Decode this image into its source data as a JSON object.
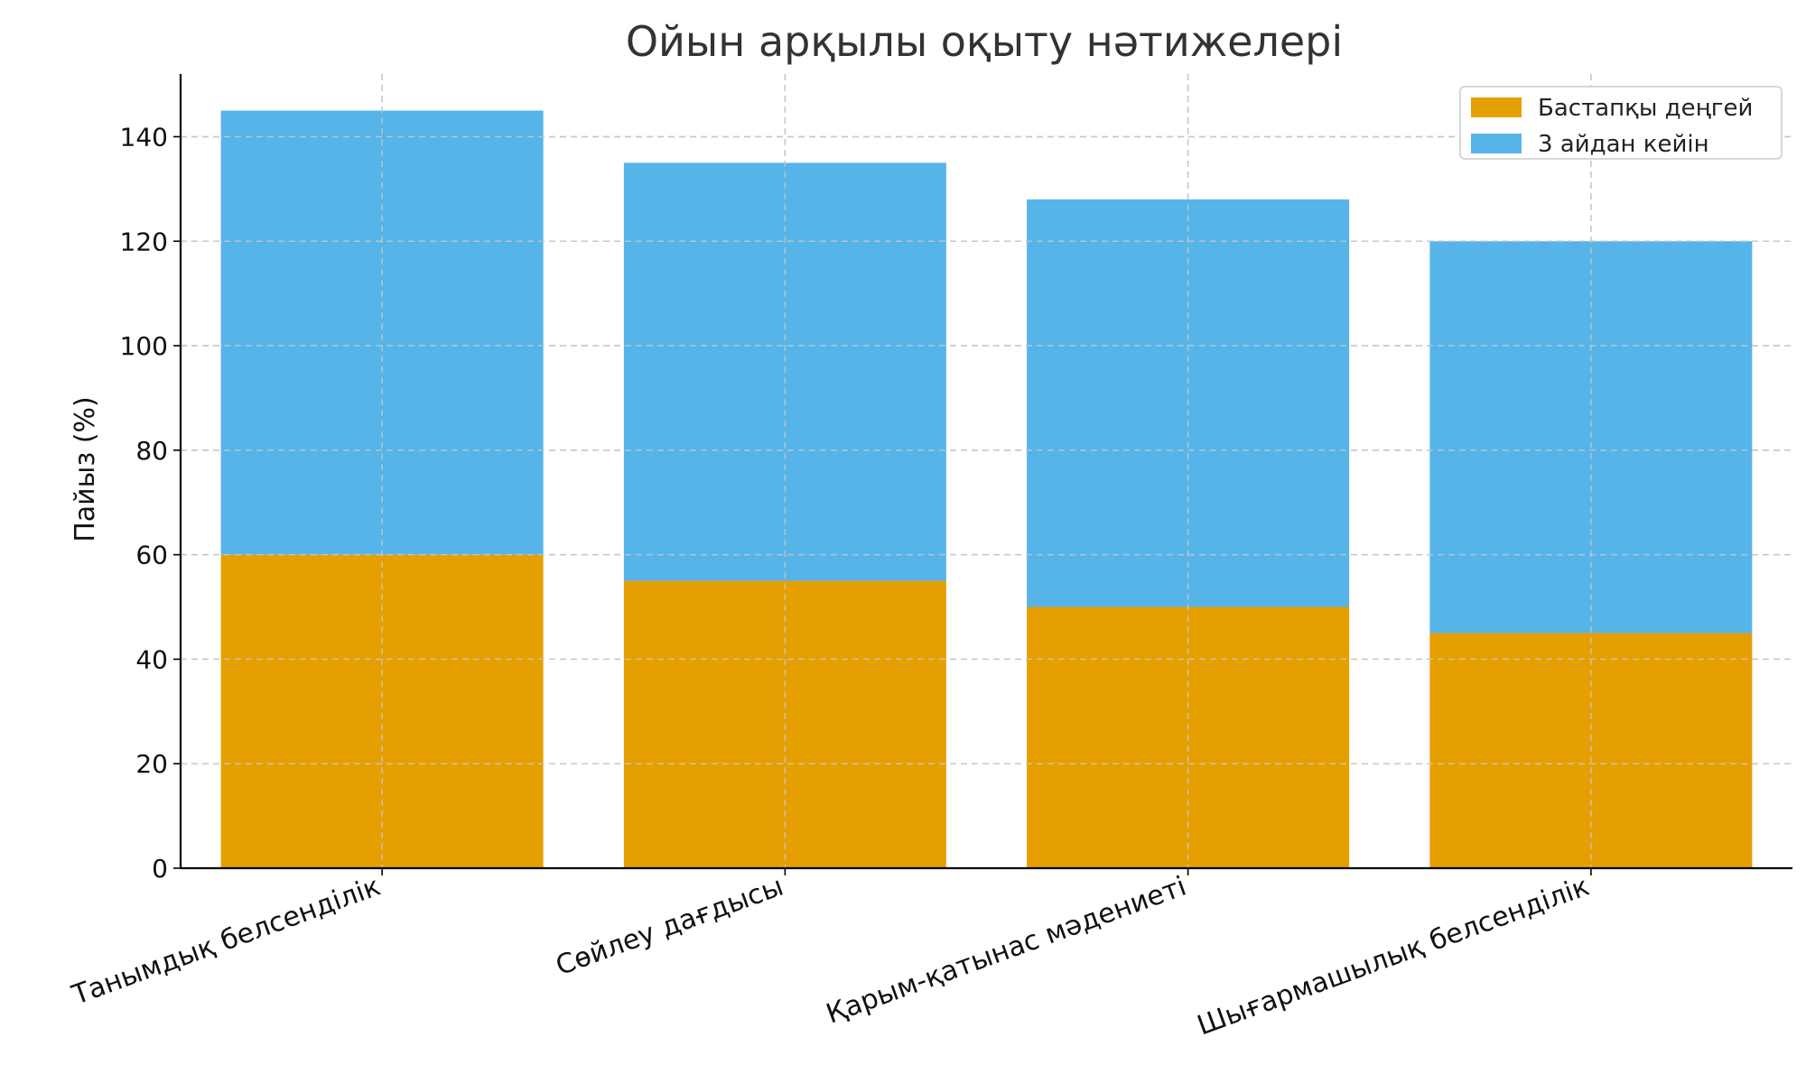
{
  "chart_data": {
    "type": "bar",
    "stacked": true,
    "title": "Ойын арқылы оқыту нәтижелері",
    "xlabel": "",
    "ylabel": "Пайыз (%)",
    "categories": [
      "Танымдық белсенділік",
      "Сөйлеу дағдысы",
      "Қарым-қатынас мәдениеті",
      "Шығармашылық белсенділік"
    ],
    "series": [
      {
        "name": "Бастапқы деңгей",
        "values": [
          60,
          55,
          50,
          45
        ],
        "color": "#E69F00"
      },
      {
        "name": "3 айдан кейін",
        "values": [
          85,
          80,
          78,
          75
        ],
        "color": "#56B4E9"
      }
    ],
    "ylim": [
      0,
      152
    ],
    "yticks": [
      0,
      20,
      40,
      60,
      80,
      100,
      120,
      140
    ],
    "grid": true,
    "legend_position": "top-right"
  }
}
